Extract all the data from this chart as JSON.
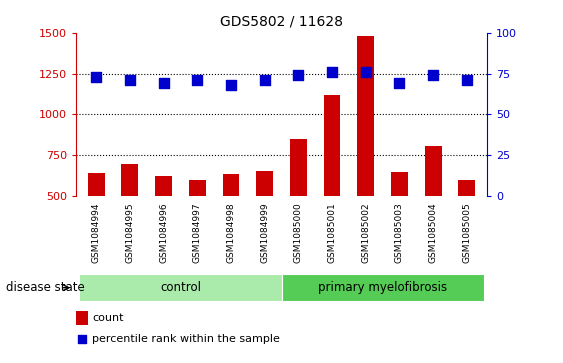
{
  "title": "GDS5802 / 11628",
  "samples": [
    "GSM1084994",
    "GSM1084995",
    "GSM1084996",
    "GSM1084997",
    "GSM1084998",
    "GSM1084999",
    "GSM1085000",
    "GSM1085001",
    "GSM1085002",
    "GSM1085003",
    "GSM1085004",
    "GSM1085005"
  ],
  "counts": [
    640,
    695,
    620,
    600,
    635,
    655,
    850,
    1120,
    1480,
    650,
    805,
    600
  ],
  "percentiles": [
    73,
    71,
    69,
    71,
    68,
    71,
    74,
    76,
    76,
    69,
    74,
    71
  ],
  "bar_color": "#cc0000",
  "dot_color": "#0000cc",
  "ylim_left": [
    500,
    1500
  ],
  "ylim_right": [
    0,
    100
  ],
  "yticks_left": [
    500,
    750,
    1000,
    1250,
    1500
  ],
  "yticks_right": [
    0,
    25,
    50,
    75,
    100
  ],
  "dotted_lines": [
    750,
    1000,
    1250
  ],
  "control_color": "#aaeaaa",
  "pmf_color": "#55cc55",
  "bar_width": 0.5,
  "dot_size": 55,
  "tick_bg_color": "#cccccc",
  "legend_count": "count",
  "legend_percentile": "percentile rank within the sample",
  "group_label": "disease state"
}
